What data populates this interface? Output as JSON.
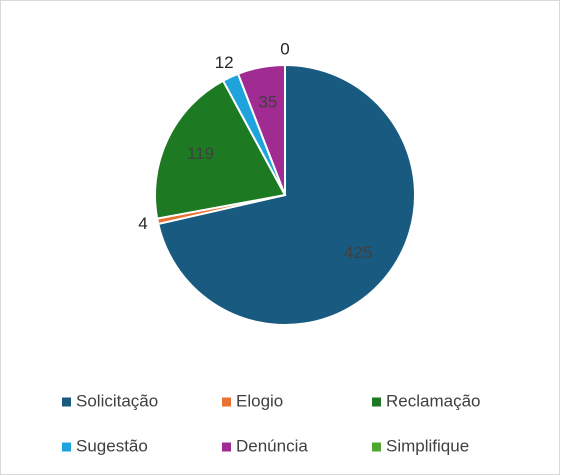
{
  "chart_data": {
    "type": "pie",
    "categories": [
      "Solicitação",
      "Elogio",
      "Reclamação",
      "Sugestão",
      "Denúncia",
      "Simplifique"
    ],
    "values": [
      425,
      4,
      119,
      12,
      35,
      0
    ],
    "colors": [
      "#195b80",
      "#e97132",
      "#1e7a22",
      "#1ea3dc",
      "#a02b93",
      "#4ea72e"
    ],
    "legend": "bottom"
  }
}
